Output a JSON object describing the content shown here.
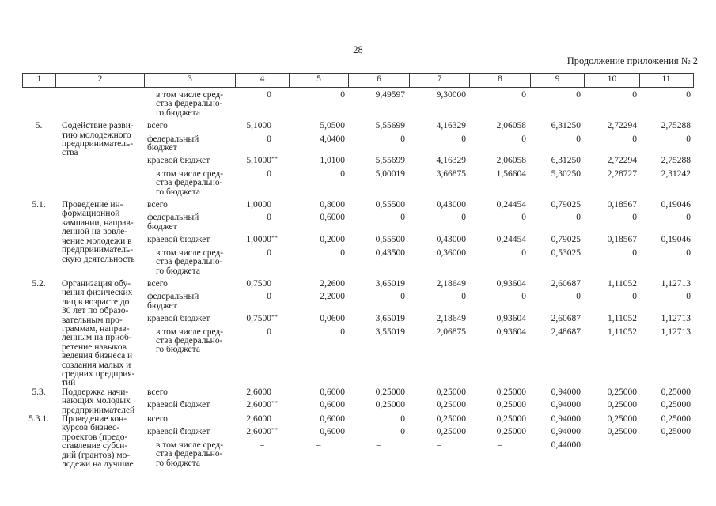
{
  "page": {
    "number": "28",
    "continuation": "Продолжение приложения № 2"
  },
  "table": {
    "column_numbers": [
      "1",
      "2",
      "3",
      "4",
      "5",
      "6",
      "7",
      "8",
      "9",
      "10",
      "11"
    ],
    "carryover_row": {
      "label": "в том числе сред-\nства федерально-\nго бюджета",
      "indent": true,
      "values": [
        "0",
        "0",
        "9,49597",
        "9,30000",
        "0",
        "0",
        "0",
        "0"
      ]
    },
    "items": [
      {
        "num": "5.",
        "title": "Содействие разви-\nтию молодежного\nпредприниматель-\nства",
        "lines": [
          {
            "label": "всего",
            "values": [
              "5,1000",
              "5,0500",
              "5,55699",
              "4,16329",
              "2,06058",
              "6,31250",
              "2,72294",
              "2,75288"
            ]
          },
          {
            "label": "федеральный\nбюджет",
            "values": [
              "0",
              "4,0400",
              "0",
              "0",
              "0",
              "0",
              "0",
              "0"
            ]
          },
          {
            "label": "краевой бюджет",
            "values": [
              {
                "t": "5,1000",
                "sup": "**"
              },
              "1,0100",
              "5,55699",
              "4,16329",
              "2,06058",
              "6,31250",
              "2,72294",
              "2,75288"
            ]
          },
          {
            "label": "в том числе сред-\nства федерально-\nго бюджета",
            "indent": true,
            "values": [
              "0",
              "0",
              "5,00019",
              "3,66875",
              "1,56604",
              "5,30250",
              "2,28727",
              "2,31242"
            ]
          }
        ]
      },
      {
        "num": "5.1.",
        "title": "Проведение ин-\nформационной\nкампании, направ-\nленной на вовле-\nчение молодежи в\nпредприниматель-\nскую деятельность",
        "lines": [
          {
            "label": "всего",
            "values": [
              "1,0000",
              "0,8000",
              "0,55500",
              "0,43000",
              "0,24454",
              "0,79025",
              "0,18567",
              "0,19046"
            ]
          },
          {
            "label": "федеральный\nбюджет",
            "values": [
              "0",
              "0,6000",
              "0",
              "0",
              "0",
              "0",
              "0",
              "0"
            ]
          },
          {
            "label": "краевой бюджет",
            "values": [
              {
                "t": "1,0000",
                "sup": "**"
              },
              "0,2000",
              "0,55500",
              "0,43000",
              "0,24454",
              "0,79025",
              "0,18567",
              "0,19046"
            ]
          },
          {
            "label": "в том числе сред-\nства федерально-\nго бюджета",
            "indent": true,
            "values": [
              "0",
              "0",
              "0,43500",
              "0,36000",
              "0",
              "0,53025",
              "0",
              "0"
            ]
          }
        ]
      },
      {
        "num": "5.2.",
        "title": "Организация обу-\nчения физических\nлиц в возрасте до\n30 лет по образо-\nвательным про-\nграммам, направ-\nленным на приоб-\nретение навыков\nведения бизнеса и\nсоздания малых и\nсредних предприя-\nтий",
        "lines": [
          {
            "label": "всего",
            "values": [
              "0,7500",
              "2,2600",
              "3,65019",
              "2,18649",
              "0,93604",
              "2,60687",
              "1,11052",
              "1,12713"
            ]
          },
          {
            "label": "федеральный\nбюджет",
            "values": [
              "0",
              "2,2000",
              "0",
              "0",
              "0",
              "0",
              "0",
              "0"
            ]
          },
          {
            "label": "краевой бюджет",
            "values": [
              {
                "t": "0,7500",
                "sup": "**"
              },
              "0,0600",
              "3,65019",
              "2,18649",
              "0,93604",
              "2,60687",
              "1,11052",
              "1,12713"
            ]
          },
          {
            "label": "в том числе сред-\nства федерально-\nго бюджета",
            "indent": true,
            "values": [
              "0",
              "0",
              "3,55019",
              "2,06875",
              "0,93604",
              "2,48687",
              "1,11052",
              "1,12713"
            ]
          }
        ]
      },
      {
        "num": "5.3.",
        "title": "Поддержка начи-\nнающих молодых\nпредпринимателей",
        "lines": [
          {
            "label": "всего",
            "values": [
              "2,6000",
              "0,6000",
              "0,25000",
              "0,25000",
              "0,25000",
              "0,94000",
              "0,25000",
              "0,25000"
            ]
          },
          {
            "label": "краевой бюджет",
            "values": [
              {
                "t": "2,6000",
                "sup": "**"
              },
              "0,6000",
              "0,25000",
              "0,25000",
              "0,25000",
              "0,94000",
              "0,25000",
              "0,25000"
            ]
          }
        ]
      },
      {
        "num": "5.3.1.",
        "title": "Проведение кон-\nкурсов бизнес-\nпроектов (предо-\nставление субси-\nдий (грантов) мо-\nлодежи на лучшие",
        "lines": [
          {
            "label": "всего",
            "values": [
              "2,6000",
              "0,6000",
              "0",
              "0,25000",
              "0,25000",
              "0,94000",
              "0,25000",
              "0,25000"
            ]
          },
          {
            "label": "краевой бюджет",
            "values": [
              {
                "t": "2,6000",
                "sup": "**"
              },
              "0,6000",
              "0",
              "0,25000",
              "0,25000",
              "0,94000",
              "0,25000",
              "0,25000"
            ]
          },
          {
            "label": "в том числе сред-\nства федерально-\nго бюджета",
            "indent": true,
            "values": [
              {
                "t": "–",
                "center": true
              },
              {
                "t": "–",
                "center": true
              },
              {
                "t": "–",
                "center": true
              },
              {
                "t": "–",
                "center": true
              },
              {
                "t": "–",
                "center": true
              },
              "0,44000",
              "",
              ""
            ]
          }
        ]
      }
    ]
  }
}
